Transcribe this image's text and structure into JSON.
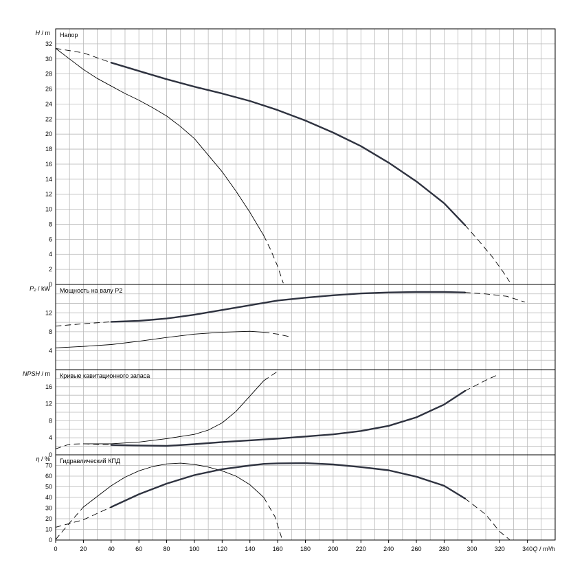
{
  "chart_data": [
    {
      "type": "line",
      "title": "Напор",
      "ylabel_sym": "H",
      "ylabel_unit": " / m",
      "ylim": [
        0,
        34
      ],
      "ytick_labels": [
        "0",
        "2",
        "4",
        "6",
        "8",
        "10",
        "12",
        "14",
        "16",
        "18",
        "20",
        "22",
        "24",
        "26",
        "28",
        "30",
        "32"
      ],
      "series": [
        {
          "style": "thin",
          "points": [
            [
              0,
              31.4
            ],
            [
              10,
              30.0
            ],
            [
              20,
              28.6
            ],
            [
              30,
              27.4
            ],
            [
              40,
              26.4
            ],
            [
              50,
              25.4
            ],
            [
              60,
              24.5
            ],
            [
              70,
              23.5
            ],
            [
              80,
              22.4
            ],
            [
              90,
              21.0
            ],
            [
              100,
              19.4
            ],
            [
              110,
              17.2
            ],
            [
              120,
              15.0
            ],
            [
              130,
              12.4
            ],
            [
              140,
              9.6
            ],
            [
              150,
              6.5
            ]
          ]
        },
        {
          "style": "dashed",
          "points": [
            [
              150,
              6.5
            ],
            [
              155,
              4.6
            ],
            [
              160,
              2.4
            ],
            [
              164,
              0.2
            ]
          ]
        },
        {
          "style": "thick",
          "points": [
            [
              40,
              29.5
            ],
            [
              60,
              28.4
            ],
            [
              80,
              27.3
            ],
            [
              100,
              26.3
            ],
            [
              120,
              25.4
            ],
            [
              140,
              24.4
            ],
            [
              160,
              23.2
            ],
            [
              180,
              21.8
            ],
            [
              200,
              20.2
            ],
            [
              220,
              18.4
            ],
            [
              240,
              16.2
            ],
            [
              260,
              13.7
            ],
            [
              280,
              10.8
            ],
            [
              295,
              7.9
            ]
          ]
        },
        {
          "style": "dashed",
          "points": [
            [
              0,
              31.4
            ],
            [
              20,
              30.8
            ],
            [
              40,
              29.5
            ]
          ]
        },
        {
          "style": "dashed",
          "points": [
            [
              295,
              7.9
            ],
            [
              305,
              5.8
            ],
            [
              315,
              3.6
            ],
            [
              322,
              1.8
            ],
            [
              327,
              0.4
            ]
          ]
        }
      ]
    },
    {
      "type": "line",
      "title": "Мощность на валу P2",
      "ylabel_sym": "P₂",
      "ylabel_unit": " / kW",
      "ylim": [
        0,
        18
      ],
      "ytick_labels": [
        "4",
        "8",
        "12"
      ],
      "ytick_values": [
        4,
        8,
        12
      ],
      "series": [
        {
          "style": "thin",
          "points": [
            [
              0,
              4.6
            ],
            [
              20,
              4.9
            ],
            [
              40,
              5.3
            ],
            [
              60,
              6.0
            ],
            [
              80,
              6.8
            ],
            [
              100,
              7.5
            ],
            [
              120,
              7.9
            ],
            [
              140,
              8.1
            ],
            [
              150,
              7.9
            ]
          ]
        },
        {
          "style": "dashed",
          "points": [
            [
              150,
              7.9
            ],
            [
              160,
              7.5
            ],
            [
              168,
              7.0
            ]
          ]
        },
        {
          "style": "thick",
          "points": [
            [
              40,
              10.1
            ],
            [
              60,
              10.3
            ],
            [
              80,
              10.8
            ],
            [
              100,
              11.6
            ],
            [
              120,
              12.6
            ],
            [
              140,
              13.6
            ],
            [
              160,
              14.6
            ],
            [
              180,
              15.2
            ],
            [
              200,
              15.7
            ],
            [
              220,
              16.1
            ],
            [
              240,
              16.3
            ],
            [
              260,
              16.4
            ],
            [
              280,
              16.4
            ],
            [
              295,
              16.3
            ]
          ]
        },
        {
          "style": "dashed",
          "points": [
            [
              0,
              9.2
            ],
            [
              20,
              9.7
            ],
            [
              40,
              10.1
            ]
          ]
        },
        {
          "style": "dashed",
          "points": [
            [
              295,
              16.3
            ],
            [
              310,
              16.0
            ],
            [
              325,
              15.5
            ],
            [
              338,
              14.3
            ]
          ]
        }
      ]
    },
    {
      "type": "line",
      "title": "Кривые кавитационного запаса",
      "ylabel_sym": "NPSH",
      "ylabel_unit": " / m",
      "ylim": [
        0,
        20
      ],
      "ytick_labels": [
        "0",
        "4",
        "8",
        "12",
        "16"
      ],
      "ytick_values": [
        0,
        4,
        8,
        12,
        16
      ],
      "series": [
        {
          "style": "thin",
          "points": [
            [
              20,
              2.6
            ],
            [
              40,
              2.6
            ],
            [
              60,
              3.0
            ],
            [
              80,
              3.8
            ],
            [
              100,
              4.8
            ],
            [
              110,
              5.8
            ],
            [
              120,
              7.5
            ],
            [
              130,
              10.2
            ],
            [
              140,
              13.8
            ],
            [
              150,
              17.4
            ]
          ]
        },
        {
          "style": "dashed",
          "points": [
            [
              150,
              17.4
            ],
            [
              160,
              19.6
            ]
          ]
        },
        {
          "style": "thick",
          "points": [
            [
              40,
              2.3
            ],
            [
              60,
              2.2
            ],
            [
              80,
              2.1
            ],
            [
              100,
              2.5
            ],
            [
              120,
              3.0
            ],
            [
              140,
              3.4
            ],
            [
              160,
              3.8
            ],
            [
              180,
              4.3
            ],
            [
              200,
              4.8
            ],
            [
              220,
              5.6
            ],
            [
              240,
              6.8
            ],
            [
              260,
              8.8
            ],
            [
              280,
              11.8
            ],
            [
              295,
              15.0
            ]
          ]
        },
        {
          "style": "dashed",
          "points": [
            [
              0,
              1.4
            ],
            [
              10,
              2.5
            ],
            [
              20,
              2.6
            ],
            [
              40,
              2.3
            ]
          ]
        },
        {
          "style": "dashed",
          "points": [
            [
              295,
              15.0
            ],
            [
              310,
              17.5
            ],
            [
              318,
              18.7
            ]
          ]
        }
      ]
    },
    {
      "type": "line",
      "title": "Гидравлический КПД",
      "ylabel_sym": "η",
      "ylabel_unit": " / %",
      "ylim": [
        0,
        80
      ],
      "ytick_labels": [
        "0",
        "10",
        "20",
        "30",
        "40",
        "50",
        "60",
        "70"
      ],
      "ytick_values": [
        0,
        10,
        20,
        30,
        40,
        50,
        60,
        70
      ],
      "series": [
        {
          "style": "thin",
          "points": [
            [
              20,
              31.0
            ],
            [
              30,
              41.0
            ],
            [
              40,
              51.0
            ],
            [
              50,
              59.0
            ],
            [
              60,
              65.0
            ],
            [
              70,
              69.0
            ],
            [
              80,
              71.5
            ],
            [
              90,
              72.2
            ],
            [
              100,
              71.0
            ],
            [
              110,
              68.5
            ],
            [
              120,
              65.0
            ],
            [
              130,
              60.0
            ],
            [
              140,
              52.0
            ],
            [
              150,
              40.0
            ]
          ]
        },
        {
          "style": "dashed",
          "points": [
            [
              0,
              0.5
            ],
            [
              10,
              16.0
            ],
            [
              20,
              31.0
            ]
          ]
        },
        {
          "style": "dashed",
          "points": [
            [
              150,
              40.0
            ],
            [
              158,
              22.0
            ],
            [
              163,
              1.5
            ]
          ]
        },
        {
          "style": "thick",
          "points": [
            [
              40,
              31.0
            ],
            [
              60,
              43.0
            ],
            [
              80,
              53.0
            ],
            [
              100,
              61.0
            ],
            [
              120,
              66.5
            ],
            [
              140,
              70.0
            ],
            [
              150,
              71.5
            ],
            [
              160,
              72.0
            ],
            [
              180,
              72.2
            ],
            [
              200,
              71.0
            ],
            [
              220,
              68.5
            ],
            [
              240,
              65.5
            ],
            [
              260,
              59.5
            ],
            [
              280,
              51.0
            ],
            [
              295,
              39.0
            ]
          ]
        },
        {
          "style": "dashed",
          "points": [
            [
              0,
              12.0
            ],
            [
              20,
              19.0
            ],
            [
              40,
              31.0
            ]
          ]
        },
        {
          "style": "dashed",
          "points": [
            [
              295,
              39.0
            ],
            [
              310,
              24.0
            ],
            [
              320,
              8.0
            ],
            [
              327,
              0.5
            ]
          ]
        }
      ]
    }
  ],
  "xaxis": {
    "label_sym": "Q",
    "label_unit": " / m³/h",
    "xlim": [
      0,
      360
    ],
    "tick_labels": [
      "0",
      "20",
      "40",
      "60",
      "80",
      "100",
      "120",
      "140",
      "160",
      "180",
      "200",
      "220",
      "240",
      "260",
      "280",
      "300",
      "320",
      "340"
    ],
    "tick_values": [
      0,
      20,
      40,
      60,
      80,
      100,
      120,
      140,
      160,
      180,
      200,
      220,
      240,
      260,
      280,
      300,
      320,
      340
    ]
  },
  "grid": true
}
